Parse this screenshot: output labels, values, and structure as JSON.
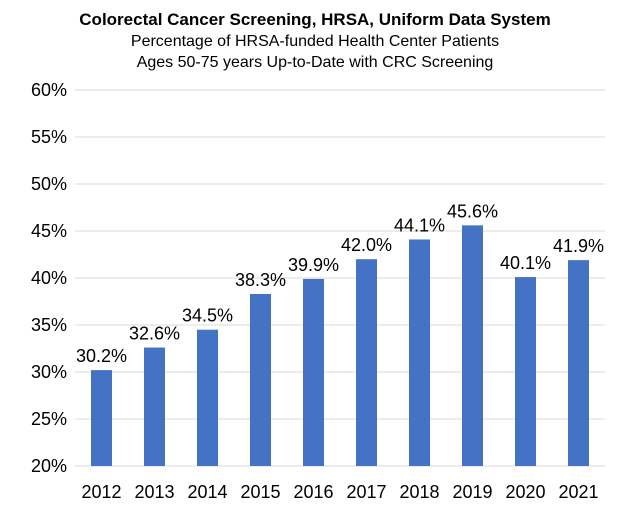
{
  "chart_data": {
    "type": "bar",
    "title": "Colorectal Cancer Screening, HRSA, Uniform Data System",
    "subtitle_lines": [
      "Percentage of HRSA-funded Health Center Patients",
      "Ages 50-75 years Up-to-Date with CRC Screening"
    ],
    "xlabel": "",
    "ylabel": "",
    "categories": [
      "2012",
      "2013",
      "2014",
      "2015",
      "2016",
      "2017",
      "2018",
      "2019",
      "2020",
      "2021"
    ],
    "values": [
      30.2,
      32.6,
      34.5,
      38.3,
      39.9,
      42.0,
      44.1,
      45.6,
      40.1,
      41.9
    ],
    "data_labels": [
      "30.2%",
      "32.6%",
      "34.5%",
      "38.3%",
      "39.9%",
      "42.0%",
      "44.1%",
      "45.6%",
      "40.1%",
      "41.9%"
    ],
    "ylim": [
      20,
      60
    ],
    "yticks": [
      20,
      25,
      30,
      35,
      40,
      45,
      50,
      55,
      60
    ],
    "ytick_labels": [
      "20%",
      "25%",
      "30%",
      "35%",
      "40%",
      "45%",
      "50%",
      "55%",
      "60%"
    ],
    "grid": true,
    "legend": "none",
    "bar_color": "#4472c4"
  }
}
